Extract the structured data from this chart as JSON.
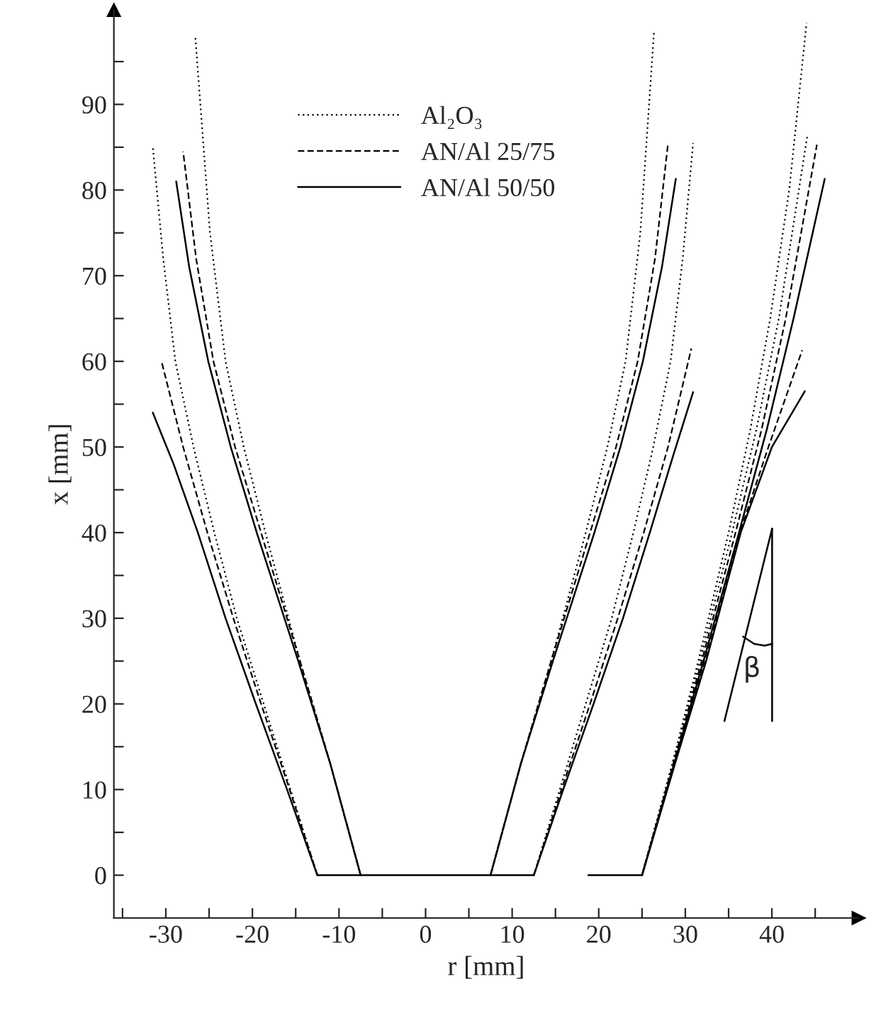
{
  "chart_data": {
    "type": "line",
    "xlabel": "r [mm]",
    "ylabel": "x [mm]",
    "xlim": [
      -36,
      50
    ],
    "ylim": [
      -5,
      101
    ],
    "xticks": [
      -30,
      -20,
      -10,
      0,
      10,
      20,
      30,
      40,
      {
        "value": -35,
        "label": null
      },
      {
        "value": -25,
        "label": null
      },
      {
        "value": -15,
        "label": null
      },
      {
        "value": -5,
        "label": null
      },
      {
        "value": 5,
        "label": null
      },
      {
        "value": 15,
        "label": null
      },
      {
        "value": 25,
        "label": null
      },
      {
        "value": 35,
        "label": null
      },
      {
        "value": 45,
        "label": null
      }
    ],
    "yticks": [
      0,
      10,
      20,
      30,
      40,
      50,
      60,
      70,
      80,
      90,
      {
        "value": 5,
        "label": null
      },
      {
        "value": 15,
        "label": null
      },
      {
        "value": 25,
        "label": null
      },
      {
        "value": 35,
        "label": null
      },
      {
        "value": 45,
        "label": null
      },
      {
        "value": 55,
        "label": null
      },
      {
        "value": 65,
        "label": null
      },
      {
        "value": 75,
        "label": null
      },
      {
        "value": 85,
        "label": null
      },
      {
        "value": 95,
        "label": null
      }
    ],
    "grid": false,
    "legend": "top",
    "marker": "none",
    "annotations": [
      "β"
    ],
    "series": [
      {
        "name": "Al₂O₃",
        "color": "#000000",
        "line_style": "dotted",
        "x": [
          7.5,
          11,
          14.5,
          18.5,
          21,
          23.1,
          24.8,
          26.4
        ],
        "values": [
          0,
          13,
          25,
          40,
          50,
          60,
          75,
          98.7
        ]
      },
      {
        "name": "AN/Al 25/75",
        "color": "#000000",
        "line_style": "dashed",
        "x": [
          7.5,
          11,
          14.5,
          19,
          22,
          24.5,
          26.5,
          28
        ],
        "values": [
          0,
          13,
          25,
          40,
          50,
          60,
          72,
          85.4
        ]
      },
      {
        "name": "AN/Al 50/50",
        "color": "#000000",
        "line_style": "solid",
        "x": [
          7.5,
          11,
          14.7,
          19.5,
          22.5,
          25.1,
          27.3,
          28.9
        ],
        "values": [
          0,
          13,
          25,
          40,
          50,
          60,
          71,
          81.3
        ]
      },
      {
        "color": "#000000",
        "line_style": "dotted",
        "x": [
          12.5,
          15.5,
          18.5,
          21.5,
          24,
          26.3,
          28.3,
          29.7,
          30.9
        ],
        "values": [
          0,
          10,
          20,
          30,
          40,
          50,
          60,
          72,
          85.5
        ]
      },
      {
        "color": "#000000",
        "line_style": "dashed",
        "x": [
          12.5,
          15.7,
          19,
          22.2,
          25.2,
          28,
          30.7
        ],
        "values": [
          0,
          10,
          20,
          30,
          40,
          50,
          61.5
        ]
      },
      {
        "color": "#000000",
        "line_style": "solid",
        "x": [
          12.5,
          15.9,
          19.4,
          22.8,
          25.9,
          28.6,
          30.9
        ],
        "values": [
          0,
          10,
          20,
          30,
          40,
          49,
          56.4
        ]
      },
      {
        "color": "#000000",
        "line_style": "dotted",
        "x": [
          -7.5,
          -11,
          -14.5,
          -18.5,
          -21,
          -23.1,
          -24.9,
          -26.6
        ],
        "values": [
          0,
          13,
          25,
          40,
          50,
          60,
          75,
          98
        ]
      },
      {
        "color": "#000000",
        "line_style": "dashed",
        "x": [
          -7.5,
          -11,
          -14.5,
          -19,
          -22,
          -24.5,
          -26.5,
          -28
        ],
        "values": [
          0,
          13,
          25,
          40,
          50,
          60,
          72,
          84.5
        ]
      },
      {
        "color": "#000000",
        "line_style": "solid",
        "x": [
          -7.5,
          -11,
          -14.7,
          -19.5,
          -22.5,
          -25.1,
          -27.3,
          -28.8
        ],
        "values": [
          0,
          13,
          25,
          40,
          50,
          60,
          71,
          81
        ]
      },
      {
        "color": "#000000",
        "line_style": "dotted",
        "x": [
          -12.5,
          -15.6,
          -18.7,
          -21.8,
          -24.4,
          -26.8,
          -28.9,
          -30.3,
          -31.5
        ],
        "values": [
          0,
          10,
          20,
          30,
          40,
          50,
          60,
          72,
          85
        ]
      },
      {
        "color": "#000000",
        "line_style": "dashed",
        "x": [
          -12.5,
          -15.7,
          -19,
          -22.2,
          -25.2,
          -28,
          -30.5
        ],
        "values": [
          0,
          10,
          20,
          30,
          40,
          50,
          60
        ]
      },
      {
        "color": "#000000",
        "line_style": "solid",
        "x": [
          -12.5,
          -16,
          -19.6,
          -23.1,
          -26.3,
          -29.1,
          -31.5
        ],
        "values": [
          0,
          10,
          20,
          30,
          40,
          48,
          54
        ]
      },
      {
        "color": "#000000",
        "line_style": "dotted",
        "x": [
          25,
          28.5,
          31.5,
          35,
          37.5,
          39.8,
          42,
          44
        ],
        "values": [
          0,
          13,
          25,
          40,
          52,
          65,
          80,
          99.5
        ]
      },
      {
        "color": "#000000",
        "line_style": "dotted",
        "x": [
          25,
          28.5,
          31.7,
          35.4,
          38.2,
          40.8,
          44.1
        ],
        "values": [
          0,
          13,
          25,
          40,
          52,
          65,
          86.4
        ]
      },
      {
        "color": "#000000",
        "line_style": "dashed",
        "x": [
          25,
          28.6,
          31.9,
          35.8,
          38.8,
          41.6,
          45.2
        ],
        "values": [
          0,
          13,
          25,
          40,
          52,
          65,
          85.3
        ]
      },
      {
        "color": "#000000",
        "line_style": "solid",
        "x": [
          25,
          28.7,
          32.1,
          36.2,
          39.4,
          42.5,
          46.1
        ],
        "values": [
          0,
          13,
          25,
          40,
          52,
          65,
          81.3
        ]
      },
      {
        "color": "#000000",
        "line_style": "dashed",
        "x": [
          25,
          28.7,
          32.2,
          36.3,
          39.6,
          43.5
        ],
        "values": [
          0,
          13,
          25,
          40,
          50,
          61.3
        ]
      },
      {
        "color": "#000000",
        "line_style": "solid",
        "x": [
          25,
          28.8,
          32.4,
          36.4,
          40,
          43.8
        ],
        "values": [
          0,
          13,
          25,
          40,
          50,
          56.5
        ]
      },
      {
        "color": "#000000",
        "line_style": "solid",
        "x": [
          -12.5,
          12.5
        ],
        "values": [
          0,
          0
        ]
      },
      {
        "color": "#000000",
        "line_style": "solid",
        "x": [
          18.8,
          25
        ],
        "values": [
          0,
          0
        ]
      }
    ]
  }
}
